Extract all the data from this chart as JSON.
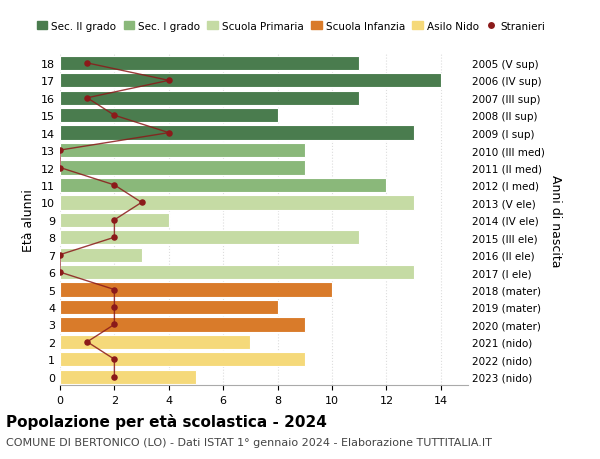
{
  "ages": [
    18,
    17,
    16,
    15,
    14,
    13,
    12,
    11,
    10,
    9,
    8,
    7,
    6,
    5,
    4,
    3,
    2,
    1,
    0
  ],
  "anni_nascita": [
    "2005 (V sup)",
    "2006 (IV sup)",
    "2007 (III sup)",
    "2008 (II sup)",
    "2009 (I sup)",
    "2010 (III med)",
    "2011 (II med)",
    "2012 (I med)",
    "2013 (V ele)",
    "2014 (IV ele)",
    "2015 (III ele)",
    "2016 (II ele)",
    "2017 (I ele)",
    "2018 (mater)",
    "2019 (mater)",
    "2020 (mater)",
    "2021 (nido)",
    "2022 (nido)",
    "2023 (nido)"
  ],
  "bar_values": [
    11,
    14,
    11,
    8,
    13,
    9,
    9,
    12,
    13,
    4,
    11,
    3,
    13,
    10,
    8,
    9,
    7,
    9,
    5
  ],
  "bar_colors": [
    "#4a7c4e",
    "#4a7c4e",
    "#4a7c4e",
    "#4a7c4e",
    "#4a7c4e",
    "#8ab87a",
    "#8ab87a",
    "#8ab87a",
    "#c5dba4",
    "#c5dba4",
    "#c5dba4",
    "#c5dba4",
    "#c5dba4",
    "#d97b2a",
    "#d97b2a",
    "#d97b2a",
    "#f5d97a",
    "#f5d97a",
    "#f5d97a"
  ],
  "stranieri_values": [
    1,
    4,
    1,
    2,
    4,
    0,
    0,
    2,
    3,
    2,
    2,
    0,
    0,
    2,
    2,
    2,
    1,
    2,
    2
  ],
  "stranieri_color": "#8b1a1a",
  "title": "Popolazione per età scolastica - 2024",
  "subtitle": "COMUNE DI BERTONICO (LO) - Dati ISTAT 1° gennaio 2024 - Elaborazione TUTTITALIA.IT",
  "ylabel": "Età alunni",
  "y2label": "Anni di nascita",
  "xlim": [
    0,
    15
  ],
  "xticks": [
    0,
    2,
    4,
    6,
    8,
    10,
    12,
    14
  ],
  "legend_labels": [
    "Sec. II grado",
    "Sec. I grado",
    "Scuola Primaria",
    "Scuola Infanzia",
    "Asilo Nido",
    "Stranieri"
  ],
  "legend_colors": [
    "#4a7c4e",
    "#8ab87a",
    "#c5dba4",
    "#d97b2a",
    "#f5d97a",
    "#8b1a1a"
  ],
  "bg_color": "#ffffff",
  "bar_height": 0.82,
  "grid_color": "#dddddd",
  "title_fontsize": 11,
  "subtitle_fontsize": 8,
  "legend_fontsize": 7.5,
  "ytick_fontsize": 8,
  "xtick_fontsize": 8,
  "raxis_fontsize": 7.5
}
